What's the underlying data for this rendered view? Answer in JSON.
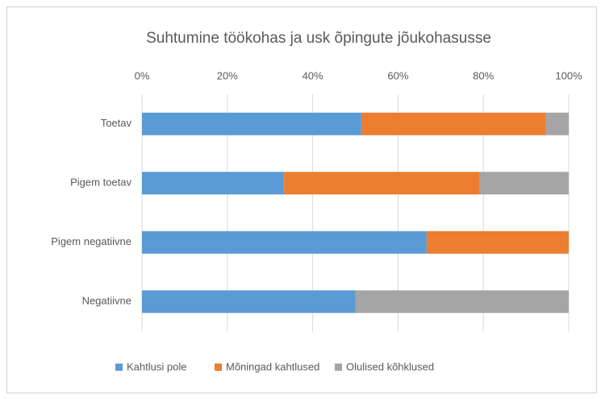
{
  "chart_data": {
    "type": "stacked-bar-horizontal",
    "title": "Suhtumine töökohas ja usk õpingute jõukohasusse",
    "categories": [
      "Toetav",
      "Pigem toetav",
      "Pigem negatiivne",
      "Negatiivne"
    ],
    "series": [
      {
        "name": "Kahtlusi pole",
        "color": "#5b9bd5",
        "values": [
          51.4,
          33.3,
          66.7,
          50
        ]
      },
      {
        "name": "Mõningad kahtlused",
        "color": "#ed7d31",
        "values": [
          43.2,
          45.8,
          33.3,
          0
        ]
      },
      {
        "name": "Olulised kõhklused",
        "color": "#a5a5a5",
        "values": [
          5.4,
          20.9,
          0,
          50
        ]
      }
    ],
    "xlim": [
      0,
      100
    ],
    "xticks": [
      {
        "value": 0,
        "label": "0%"
      },
      {
        "value": 20,
        "label": "20%"
      },
      {
        "value": 40,
        "label": "40%"
      },
      {
        "value": 60,
        "label": "60%"
      },
      {
        "value": 80,
        "label": "80%"
      },
      {
        "value": 100,
        "label": "100%"
      }
    ],
    "grid": true,
    "legend": "bottom"
  }
}
